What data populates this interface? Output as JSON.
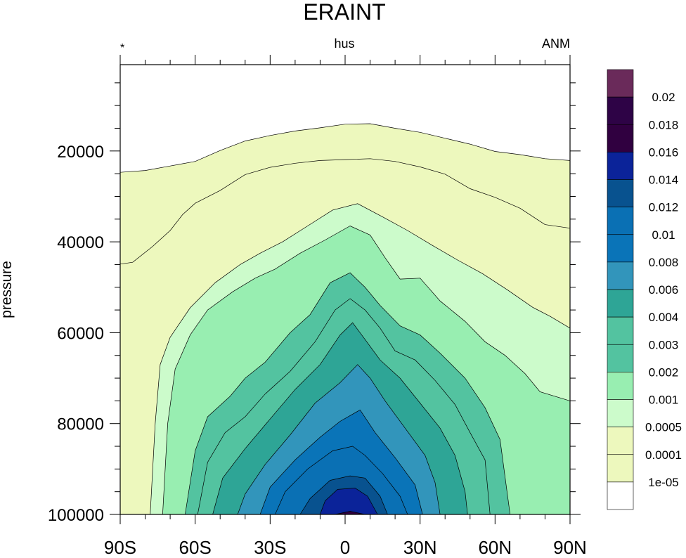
{
  "chart_data": {
    "type": "contour",
    "title": "ERAINT",
    "left_string": "*",
    "center_string": "hus",
    "right_string": "ANM",
    "ylabel": "pressure",
    "xlabel": "",
    "x_ticks": [
      {
        "value": -90,
        "label": "90S"
      },
      {
        "value": -60,
        "label": "60S"
      },
      {
        "value": -30,
        "label": "30S"
      },
      {
        "value": 0,
        "label": "0"
      },
      {
        "value": 30,
        "label": "30N"
      },
      {
        "value": 60,
        "label": "60N"
      },
      {
        "value": 90,
        "label": "90N"
      }
    ],
    "y_ticks": [
      {
        "value": 20000,
        "label": "20000"
      },
      {
        "value": 40000,
        "label": "40000"
      },
      {
        "value": 60000,
        "label": "60000"
      },
      {
        "value": 80000,
        "label": "80000"
      },
      {
        "value": 100000,
        "label": "100000"
      }
    ],
    "xlim": [
      -90,
      90
    ],
    "ylim": [
      1000,
      100000
    ],
    "y_inverted": true,
    "levels": [
      "1e-05",
      "0.0001",
      "0.0005",
      "0.001",
      "0.002",
      "0.003",
      "0.004",
      "0.006",
      "0.008",
      "0.01",
      "0.012",
      "0.014",
      "0.016",
      "0.018",
      "0.02"
    ],
    "colors": [
      "#ffffff",
      "#edf8bd",
      "#edf8bd",
      "#ccfbcb",
      "#98eeb1",
      "#53c3a0",
      "#53c3a0",
      "#2ea596",
      "#3295bb",
      "#0a74b8",
      "#0a70b4",
      "#08528f",
      "#0b2399",
      "#300040",
      "#2e0346",
      "#6a2a5a"
    ],
    "contours": [
      {
        "level": "1e-05",
        "points": [
          [
            -90,
            24700
          ],
          [
            -80,
            24300
          ],
          [
            -70,
            23300
          ],
          [
            -60,
            22300
          ],
          [
            -50,
            19900
          ],
          [
            -40,
            17800
          ],
          [
            -30,
            16600
          ],
          [
            -20,
            15600
          ],
          [
            -10,
            14900
          ],
          [
            0,
            14100
          ],
          [
            10,
            14000
          ],
          [
            20,
            15000
          ],
          [
            30,
            15900
          ],
          [
            40,
            17200
          ],
          [
            50,
            18500
          ],
          [
            60,
            20100
          ],
          [
            70,
            20800
          ],
          [
            80,
            21700
          ],
          [
            90,
            22100
          ]
        ]
      },
      {
        "level": "0.0001",
        "points": [
          [
            -90,
            44900
          ],
          [
            -85,
            44500
          ],
          [
            -77,
            41000
          ],
          [
            -70,
            37500
          ],
          [
            -65,
            34000
          ],
          [
            -60,
            31500
          ],
          [
            -50,
            28700
          ],
          [
            -40,
            25200
          ],
          [
            -30,
            23600
          ],
          [
            -20,
            22700
          ],
          [
            -10,
            22100
          ],
          [
            0,
            21900
          ],
          [
            10,
            21700
          ],
          [
            20,
            22300
          ],
          [
            30,
            23500
          ],
          [
            40,
            25100
          ],
          [
            50,
            28300
          ],
          [
            60,
            30200
          ],
          [
            70,
            32600
          ],
          [
            80,
            36200
          ],
          [
            90,
            37000
          ]
        ]
      },
      {
        "level": "0.0005",
        "points": [
          [
            -78,
            100000
          ],
          [
            -76,
            80000
          ],
          [
            -74,
            67000
          ],
          [
            -70,
            61000
          ],
          [
            -62,
            54500
          ],
          [
            -52,
            49000
          ],
          [
            -42,
            45000
          ],
          [
            -34,
            42500
          ],
          [
            -25,
            40000
          ],
          [
            -15,
            36500
          ],
          [
            -5,
            33000
          ],
          [
            5,
            31600
          ],
          [
            15,
            34500
          ],
          [
            25,
            37500
          ],
          [
            35,
            40800
          ],
          [
            45,
            44000
          ],
          [
            55,
            47000
          ],
          [
            65,
            50600
          ],
          [
            75,
            54400
          ],
          [
            82,
            56400
          ],
          [
            90,
            59000
          ]
        ]
      },
      {
        "level": "0.001",
        "points": [
          [
            -73,
            100000
          ],
          [
            -71,
            80000
          ],
          [
            -68,
            68000
          ],
          [
            -62,
            60500
          ],
          [
            -55,
            55000
          ],
          [
            -45,
            51000
          ],
          [
            -36,
            48000
          ],
          [
            -28,
            46000
          ],
          [
            -18,
            42500
          ],
          [
            -8,
            39600
          ],
          [
            2,
            36500
          ],
          [
            10,
            38500
          ],
          [
            16,
            43500
          ],
          [
            22,
            48200
          ],
          [
            30,
            48000
          ],
          [
            38,
            53000
          ],
          [
            48,
            57500
          ],
          [
            56,
            62000
          ],
          [
            64,
            65000
          ],
          [
            72,
            69000
          ],
          [
            78,
            73000
          ],
          [
            90,
            75000
          ]
        ]
      },
      {
        "level": "0.002",
        "points": [
          [
            -64,
            100000
          ],
          [
            -60,
            86000
          ],
          [
            -55,
            78500
          ],
          [
            -46,
            74000
          ],
          [
            -40,
            70000
          ],
          [
            -32,
            66500
          ],
          [
            -22,
            60000
          ],
          [
            -14,
            56000
          ],
          [
            -6,
            49000
          ],
          [
            2,
            46800
          ],
          [
            8,
            50000
          ],
          [
            14,
            54000
          ],
          [
            22,
            58500
          ],
          [
            30,
            60500
          ],
          [
            38,
            64500
          ],
          [
            48,
            70000
          ],
          [
            56,
            76500
          ],
          [
            62,
            83500
          ],
          [
            66,
            100000
          ]
        ]
      },
      {
        "level": "0.003",
        "points": [
          [
            -59,
            100000
          ],
          [
            -55,
            88500
          ],
          [
            -48,
            82000
          ],
          [
            -40,
            78500
          ],
          [
            -32,
            73500
          ],
          [
            -22,
            68500
          ],
          [
            -12,
            62000
          ],
          [
            -4,
            55000
          ],
          [
            2,
            52500
          ],
          [
            8,
            55000
          ],
          [
            14,
            59000
          ],
          [
            20,
            64000
          ],
          [
            28,
            66000
          ],
          [
            36,
            70500
          ],
          [
            44,
            75800
          ],
          [
            50,
            82000
          ],
          [
            56,
            88000
          ],
          [
            58,
            100000
          ]
        ]
      },
      {
        "level": "0.004",
        "points": [
          [
            -53,
            100000
          ],
          [
            -49,
            92000
          ],
          [
            -40,
            85500
          ],
          [
            -30,
            79000
          ],
          [
            -20,
            72500
          ],
          [
            -10,
            67000
          ],
          [
            -2,
            60500
          ],
          [
            3,
            57800
          ],
          [
            8,
            61500
          ],
          [
            14,
            66000
          ],
          [
            22,
            70000
          ],
          [
            30,
            75500
          ],
          [
            38,
            81000
          ],
          [
            44,
            87000
          ],
          [
            48,
            95000
          ],
          [
            49,
            100000
          ]
        ]
      },
      {
        "level": "0.006",
        "points": [
          [
            -43,
            100000
          ],
          [
            -40,
            95500
          ],
          [
            -32,
            89000
          ],
          [
            -22,
            82500
          ],
          [
            -12,
            75500
          ],
          [
            -2,
            71000
          ],
          [
            5,
            67000
          ],
          [
            10,
            70000
          ],
          [
            16,
            75000
          ],
          [
            24,
            81000
          ],
          [
            32,
            87000
          ],
          [
            36,
            93000
          ],
          [
            38,
            100000
          ]
        ]
      },
      {
        "level": "0.008",
        "points": [
          [
            -34,
            100000
          ],
          [
            -30,
            94000
          ],
          [
            -20,
            88000
          ],
          [
            -10,
            83000
          ],
          [
            -2,
            79500
          ],
          [
            6,
            77000
          ],
          [
            12,
            82000
          ],
          [
            20,
            87500
          ],
          [
            28,
            93500
          ],
          [
            31,
            100000
          ]
        ]
      },
      {
        "level": "0.01",
        "points": [
          [
            -28,
            100000
          ],
          [
            -24,
            95000
          ],
          [
            -15,
            90000
          ],
          [
            -5,
            86000
          ],
          [
            3,
            85000
          ],
          [
            8,
            87000
          ],
          [
            15,
            91000
          ],
          [
            22,
            96000
          ],
          [
            25,
            100000
          ]
        ]
      },
      {
        "level": "0.012",
        "points": [
          [
            -18,
            100000
          ],
          [
            -14,
            96500
          ],
          [
            -6,
            92500
          ],
          [
            2,
            91500
          ],
          [
            8,
            92000
          ],
          [
            14,
            96000
          ],
          [
            17,
            100000
          ]
        ]
      },
      {
        "level": "0.014",
        "points": [
          [
            -10,
            100000
          ],
          [
            -8,
            97000
          ],
          [
            -3,
            94500
          ],
          [
            4,
            94200
          ],
          [
            9,
            96000
          ],
          [
            13,
            100000
          ]
        ]
      },
      {
        "level": "0.016",
        "points": [
          [
            -4,
            100000
          ],
          [
            2,
            99300
          ],
          [
            8,
            100000
          ]
        ]
      }
    ]
  }
}
